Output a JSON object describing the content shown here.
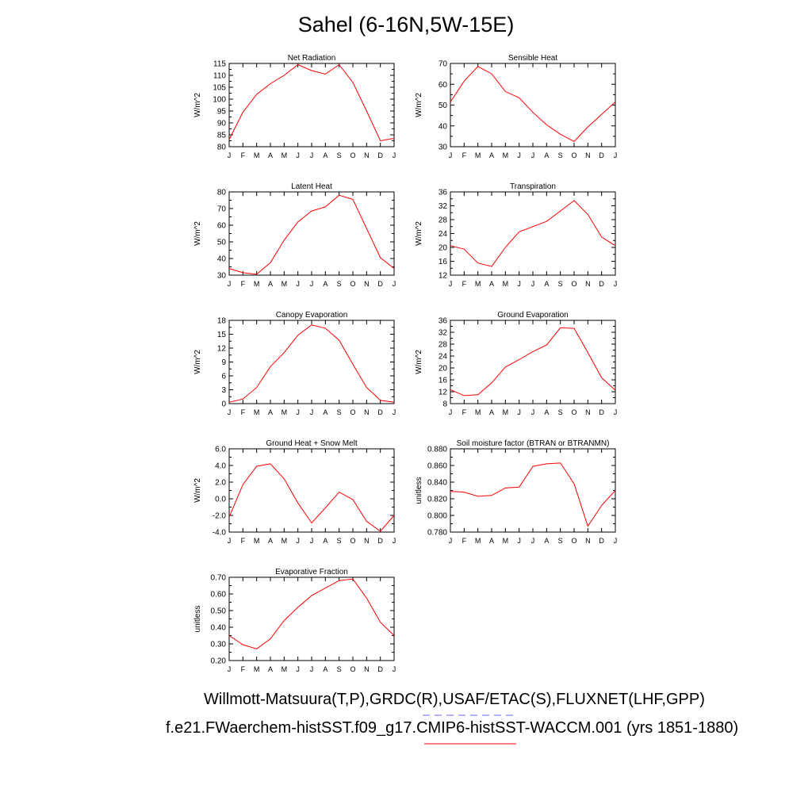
{
  "title": "Sahel (6-16N,5W-15E)",
  "obs_label": "Willmott-Matsuura(T,P),GRDC(R),USAF/ETAC(S),FLUXNET(LHF,GPP)",
  "model_label": "f.e21.FWaerchem-histSST.f09_g17.CMIP6-histSST-WACCM.001 (yrs 1851-1880)",
  "colors": {
    "model": "#ff0000",
    "obs": "#6666ff",
    "axis": "#000000"
  },
  "chart_data": [
    {
      "type": "line",
      "title": "Net Radiation",
      "ylabel": "W/m^2",
      "categories": [
        "J",
        "F",
        "M",
        "A",
        "M",
        "J",
        "J",
        "A",
        "S",
        "O",
        "N",
        "D",
        "J"
      ],
      "ylim": [
        80,
        115
      ],
      "yticks": [
        "80",
        "85",
        "90",
        "95",
        "100",
        "105",
        "110",
        "115"
      ],
      "series": [
        {
          "values": [
            83,
            94.5,
            102,
            106.5,
            110,
            114.5,
            112,
            110.5,
            114.5,
            107,
            95,
            82.5,
            83.5
          ]
        }
      ]
    },
    {
      "type": "line",
      "title": "Sensible Heat",
      "ylabel": "W/m^2",
      "categories": [
        "J",
        "F",
        "M",
        "A",
        "M",
        "J",
        "J",
        "A",
        "S",
        "O",
        "N",
        "D",
        "J"
      ],
      "ylim": [
        30,
        70
      ],
      "yticks": [
        "30",
        "40",
        "50",
        "60",
        "70"
      ],
      "series": [
        {
          "values": [
            51.5,
            61.5,
            68.5,
            65,
            56.5,
            53.5,
            46.5,
            40.5,
            36,
            32.5,
            39.5,
            45.5,
            51.5
          ]
        }
      ]
    },
    {
      "type": "line",
      "title": "Latent Heat",
      "ylabel": "W/m^2",
      "categories": [
        "J",
        "F",
        "M",
        "A",
        "M",
        "J",
        "J",
        "A",
        "S",
        "O",
        "N",
        "D",
        "J"
      ],
      "ylim": [
        30,
        80
      ],
      "yticks": [
        "30",
        "40",
        "50",
        "60",
        "70",
        "80"
      ],
      "series": [
        {
          "values": [
            34,
            31.5,
            30.5,
            37.5,
            51,
            62,
            68.5,
            71,
            78,
            75.5,
            58,
            40.5,
            34
          ]
        }
      ]
    },
    {
      "type": "line",
      "title": "Transpiration",
      "ylabel": "W/m^2",
      "categories": [
        "J",
        "F",
        "M",
        "A",
        "M",
        "J",
        "J",
        "A",
        "S",
        "O",
        "N",
        "D",
        "J"
      ],
      "ylim": [
        12,
        36
      ],
      "yticks": [
        "12",
        "16",
        "20",
        "24",
        "28",
        "32",
        "36"
      ],
      "series": [
        {
          "values": [
            20.5,
            19.5,
            15.5,
            14.5,
            20,
            24.5,
            26,
            27.5,
            30.5,
            33.5,
            29.5,
            23,
            20.5
          ]
        }
      ]
    },
    {
      "type": "line",
      "title": "Canopy Evaporation",
      "ylabel": "W/m^2",
      "categories": [
        "J",
        "F",
        "M",
        "A",
        "M",
        "J",
        "J",
        "A",
        "S",
        "O",
        "N",
        "D",
        "J"
      ],
      "ylim": [
        0,
        18
      ],
      "yticks": [
        "0",
        "3",
        "6",
        "9",
        "12",
        "15",
        "18"
      ],
      "series": [
        {
          "values": [
            0.3,
            1,
            3.5,
            8,
            11,
            14.8,
            17,
            16.3,
            13.7,
            8.5,
            3.5,
            0.7,
            0.3
          ]
        }
      ]
    },
    {
      "type": "line",
      "title": "Ground Evaporation",
      "ylabel": "W/m^2",
      "categories": [
        "J",
        "F",
        "M",
        "A",
        "M",
        "J",
        "J",
        "A",
        "S",
        "O",
        "N",
        "D",
        "J"
      ],
      "ylim": [
        8,
        36
      ],
      "yticks": [
        "8",
        "12",
        "16",
        "20",
        "24",
        "28",
        "32",
        "36"
      ],
      "series": [
        {
          "values": [
            12.7,
            10.7,
            11,
            15,
            20.3,
            22.8,
            25.5,
            27.7,
            33.5,
            33.3,
            25.2,
            16.7,
            12.5
          ]
        }
      ]
    },
    {
      "type": "line",
      "title": "Ground Heat + Snow Melt",
      "ylabel": "W/m^2",
      "categories": [
        "J",
        "F",
        "M",
        "A",
        "M",
        "J",
        "J",
        "A",
        "S",
        "O",
        "N",
        "D",
        "J"
      ],
      "ylim": [
        -4,
        6
      ],
      "yticks": [
        "-4.0",
        "-2.0",
        "0.0",
        "2.0",
        "4.0",
        "6.0"
      ],
      "series": [
        {
          "values": [
            -2.2,
            1.7,
            3.9,
            4.2,
            2.4,
            -0.5,
            -2.9,
            -1.1,
            0.8,
            -0.1,
            -2.7,
            -3.9,
            -2.0
          ]
        }
      ]
    },
    {
      "type": "line",
      "title": "Soil moisture factor (BTRAN or BTRANMN)",
      "ylabel": "unitless",
      "categories": [
        "J",
        "F",
        "M",
        "A",
        "M",
        "J",
        "J",
        "A",
        "S",
        "O",
        "N",
        "D",
        "J"
      ],
      "ylim": [
        0.78,
        0.88
      ],
      "yticks": [
        "0.780",
        "0.800",
        "0.820",
        "0.840",
        "0.860",
        "0.880"
      ],
      "series": [
        {
          "values": [
            0.829,
            0.828,
            0.823,
            0.824,
            0.833,
            0.834,
            0.859,
            0.862,
            0.863,
            0.838,
            0.787,
            0.812,
            0.83
          ]
        }
      ]
    },
    {
      "type": "line",
      "title": "Evaporative Fraction",
      "ylabel": "unitless",
      "categories": [
        "J",
        "F",
        "M",
        "A",
        "M",
        "J",
        "J",
        "A",
        "S",
        "O",
        "N",
        "D",
        "J"
      ],
      "ylim": [
        0.2,
        0.7
      ],
      "yticks": [
        "0.20",
        "0.30",
        "0.40",
        "0.50",
        "0.60",
        "0.70"
      ],
      "series": [
        {
          "values": [
            0.35,
            0.295,
            0.27,
            0.33,
            0.44,
            0.52,
            0.59,
            0.635,
            0.68,
            0.69,
            0.575,
            0.43,
            0.35
          ]
        }
      ]
    }
  ]
}
